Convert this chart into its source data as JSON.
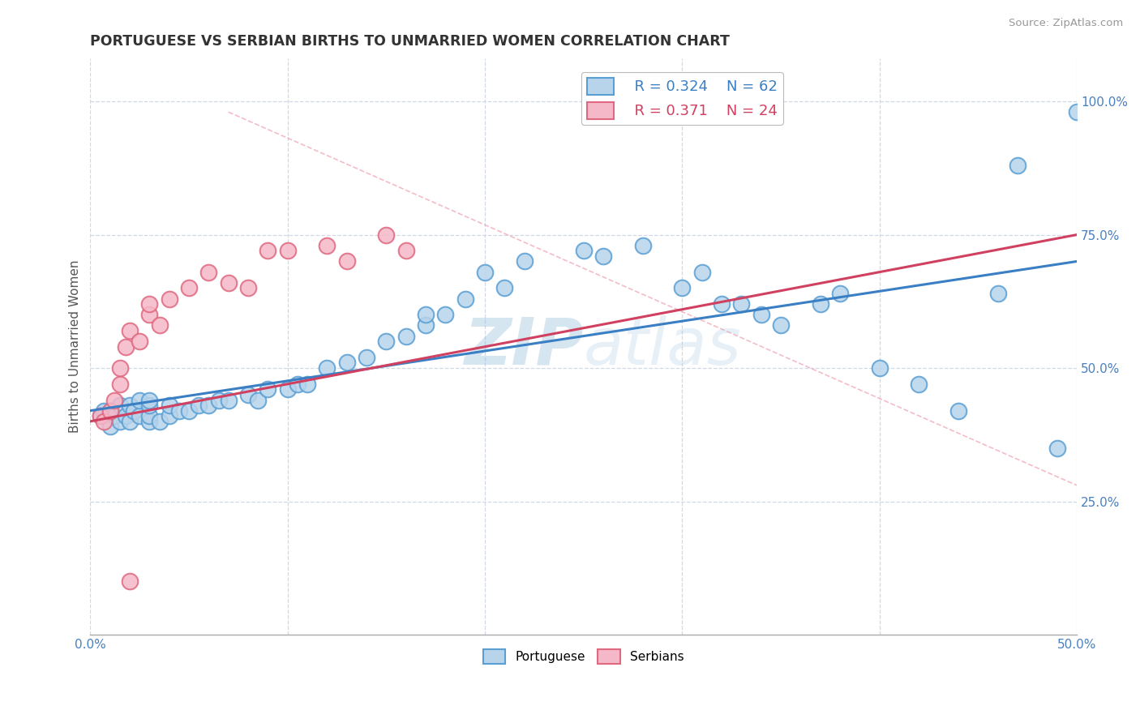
{
  "title": "PORTUGUESE VS SERBIAN BIRTHS TO UNMARRIED WOMEN CORRELATION CHART",
  "source": "Source: ZipAtlas.com",
  "ylabel_label": "Births to Unmarried Women",
  "x_min": 0.0,
  "x_max": 0.5,
  "y_min": 0.0,
  "y_max": 1.08,
  "x_ticks": [
    0.0,
    0.1,
    0.2,
    0.3,
    0.4,
    0.5
  ],
  "x_tick_labels": [
    "0.0%",
    "",
    "",
    "",
    "",
    "50.0%"
  ],
  "y_ticks": [
    0.25,
    0.5,
    0.75,
    1.0
  ],
  "y_tick_labels": [
    "25.0%",
    "50.0%",
    "75.0%",
    "100.0%"
  ],
  "legend_r_portuguese": "R = 0.324",
  "legend_n_portuguese": "N = 62",
  "legend_r_serbian": "R = 0.371",
  "legend_n_serbian": "N = 24",
  "portuguese_color": "#b8d4ea",
  "serbian_color": "#f5b8c8",
  "portuguese_edge_color": "#5a9fd4",
  "serbian_edge_color": "#e06880",
  "portuguese_line_color": "#3a7fc4",
  "serbian_line_color": "#d04060",
  "watermark_color": "#c5d8ea",
  "portuguese_x": [
    0.005,
    0.007,
    0.01,
    0.01,
    0.012,
    0.015,
    0.015,
    0.018,
    0.02,
    0.02,
    0.022,
    0.025,
    0.025,
    0.03,
    0.03,
    0.03,
    0.03,
    0.035,
    0.04,
    0.04,
    0.045,
    0.05,
    0.055,
    0.06,
    0.065,
    0.07,
    0.08,
    0.085,
    0.09,
    0.1,
    0.105,
    0.11,
    0.12,
    0.13,
    0.14,
    0.15,
    0.16,
    0.17,
    0.17,
    0.18,
    0.19,
    0.2,
    0.21,
    0.22,
    0.25,
    0.26,
    0.28,
    0.3,
    0.31,
    0.32,
    0.33,
    0.34,
    0.35,
    0.37,
    0.38,
    0.4,
    0.42,
    0.44,
    0.46,
    0.47,
    0.49,
    0.5
  ],
  "portuguese_y": [
    0.41,
    0.42,
    0.39,
    0.42,
    0.41,
    0.4,
    0.43,
    0.41,
    0.4,
    0.43,
    0.42,
    0.41,
    0.44,
    0.4,
    0.41,
    0.43,
    0.44,
    0.4,
    0.41,
    0.43,
    0.42,
    0.42,
    0.43,
    0.43,
    0.44,
    0.44,
    0.45,
    0.44,
    0.46,
    0.46,
    0.47,
    0.47,
    0.5,
    0.51,
    0.52,
    0.55,
    0.56,
    0.58,
    0.6,
    0.6,
    0.63,
    0.68,
    0.65,
    0.7,
    0.72,
    0.71,
    0.73,
    0.65,
    0.68,
    0.62,
    0.62,
    0.6,
    0.58,
    0.62,
    0.64,
    0.5,
    0.47,
    0.42,
    0.64,
    0.88,
    0.35,
    0.98
  ],
  "serbian_x": [
    0.005,
    0.007,
    0.01,
    0.012,
    0.015,
    0.015,
    0.018,
    0.02,
    0.025,
    0.03,
    0.03,
    0.035,
    0.04,
    0.05,
    0.06,
    0.07,
    0.08,
    0.09,
    0.1,
    0.12,
    0.13,
    0.15,
    0.16,
    0.02
  ],
  "serbian_y": [
    0.41,
    0.4,
    0.42,
    0.44,
    0.47,
    0.5,
    0.54,
    0.57,
    0.55,
    0.6,
    0.62,
    0.58,
    0.63,
    0.65,
    0.68,
    0.66,
    0.65,
    0.72,
    0.72,
    0.73,
    0.7,
    0.75,
    0.72,
    0.1
  ],
  "port_line_x0": 0.0,
  "port_line_x1": 0.5,
  "port_line_y0": 0.42,
  "port_line_y1": 0.7,
  "serb_line_x0": 0.0,
  "serb_line_x1": 0.5,
  "serb_line_y0": 0.4,
  "serb_line_y1": 0.75
}
